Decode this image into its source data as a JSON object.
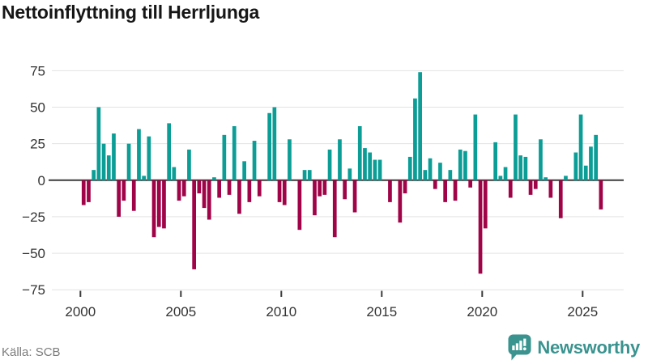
{
  "title": "Nettoinflyttning till Herrljunga",
  "footer": {
    "source": "Källa: SCB",
    "brand": "Newsworthy"
  },
  "chart_data": {
    "type": "bar",
    "title": "Nettoinflyttning till Herrljunga",
    "frequency": "quarterly",
    "start_year": 2000,
    "series": [
      {
        "year": 2000,
        "values": [
          -17,
          -15,
          7,
          50
        ]
      },
      {
        "year": 2001,
        "values": [
          25,
          17,
          32,
          -25
        ]
      },
      {
        "year": 2002,
        "values": [
          -14,
          25,
          -21,
          35
        ]
      },
      {
        "year": 2003,
        "values": [
          3,
          30,
          -39,
          -32
        ]
      },
      {
        "year": 2004,
        "values": [
          -33,
          39,
          9,
          -14
        ]
      },
      {
        "year": 2005,
        "values": [
          -11,
          21,
          -61,
          -9
        ]
      },
      {
        "year": 2006,
        "values": [
          -19,
          -27,
          2,
          -12
        ]
      },
      {
        "year": 2007,
        "values": [
          31,
          -10,
          37,
          -23
        ]
      },
      {
        "year": 2008,
        "values": [
          13,
          -15,
          27,
          -11
        ]
      },
      {
        "year": 2009,
        "values": [
          0,
          46,
          50,
          -15
        ]
      },
      {
        "year": 2010,
        "values": [
          -17,
          28,
          0,
          -34
        ]
      },
      {
        "year": 2011,
        "values": [
          7,
          7,
          -24,
          -11
        ]
      },
      {
        "year": 2012,
        "values": [
          -10,
          21,
          -39,
          28
        ]
      },
      {
        "year": 2013,
        "values": [
          -13,
          8,
          -22,
          37
        ]
      },
      {
        "year": 2014,
        "values": [
          22,
          19,
          14,
          14
        ]
      },
      {
        "year": 2015,
        "values": [
          0,
          -15,
          0,
          -29
        ]
      },
      {
        "year": 2016,
        "values": [
          -9,
          16,
          56,
          74
        ]
      },
      {
        "year": 2017,
        "values": [
          7,
          15,
          -6,
          12
        ]
      },
      {
        "year": 2018,
        "values": [
          -15,
          7,
          -14,
          21
        ]
      },
      {
        "year": 2019,
        "values": [
          20,
          -5,
          45,
          -64
        ]
      },
      {
        "year": 2020,
        "values": [
          -33,
          0,
          26,
          3
        ]
      },
      {
        "year": 2021,
        "values": [
          9,
          -12,
          45,
          17
        ]
      },
      {
        "year": 2022,
        "values": [
          16,
          -10,
          -6,
          28
        ]
      },
      {
        "year": 2023,
        "values": [
          2,
          -12,
          0,
          -26
        ]
      },
      {
        "year": 2024,
        "values": [
          3,
          0,
          19,
          45
        ]
      },
      {
        "year": 2025,
        "values": [
          10,
          23,
          31,
          -20
        ]
      }
    ],
    "yticks": [
      75,
      50,
      25,
      0,
      -25,
      -50,
      -75
    ],
    "xticks": [
      2000,
      2005,
      2010,
      2015,
      2020,
      2025
    ],
    "ylim": [
      -75,
      75
    ],
    "grid": true,
    "legend": false,
    "positive_color": "#0b9d96",
    "negative_color": "#a00347",
    "zero_line_color": "#3b3b3b",
    "grid_color": "#e3e3e3",
    "axis_text_color": "#333333"
  }
}
